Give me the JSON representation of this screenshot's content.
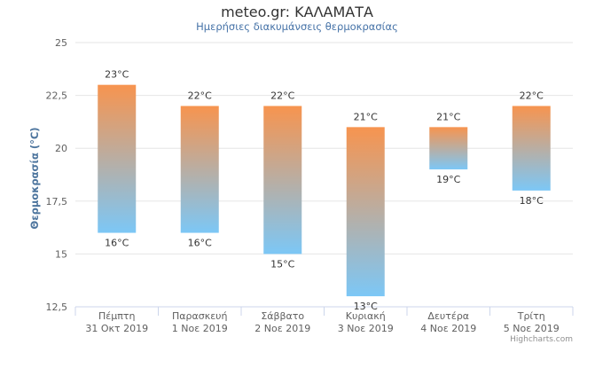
{
  "chart_data": {
    "type": "columnrange",
    "title": "meteo.gr: ΚΑΛΑΜΑΤΑ",
    "subtitle": "Ημερήσιες διακυμάνσεις θερμοκρασίας",
    "ylabel": "Θερμοκρασία (°C)",
    "ylim": [
      12.5,
      25
    ],
    "yticks": [
      12.5,
      15,
      17.5,
      20,
      22.5,
      25
    ],
    "ytick_labels": [
      "12,5",
      "15",
      "17,5",
      "20",
      "22,5",
      "25"
    ],
    "grid": true,
    "categories": [
      [
        "Πέμπτη",
        "31 Οκτ 2019"
      ],
      [
        "Παρασκευή",
        "1 Νοε 2019"
      ],
      [
        "Σάββατο",
        "2 Νοε 2019"
      ],
      [
        "Κυριακή",
        "3 Νοε 2019"
      ],
      [
        "Δευτέρα",
        "4 Νοε 2019"
      ],
      [
        "Τρίτη",
        "5 Νοε 2019"
      ]
    ],
    "low": [
      16,
      16,
      15,
      13,
      19,
      18
    ],
    "high": [
      23,
      22,
      22,
      21,
      21,
      22
    ],
    "low_labels": [
      "16°C",
      "16°C",
      "15°C",
      "13°C",
      "19°C",
      "18°C"
    ],
    "high_labels": [
      "23°C",
      "22°C",
      "22°C",
      "21°C",
      "21°C",
      "22°C"
    ],
    "colors": {
      "top": "#f7944f",
      "bottom": "#7cc7f6",
      "grid": "#e6e6e6",
      "axis": "#ccd6eb"
    },
    "credits": "Highcharts.com"
  }
}
